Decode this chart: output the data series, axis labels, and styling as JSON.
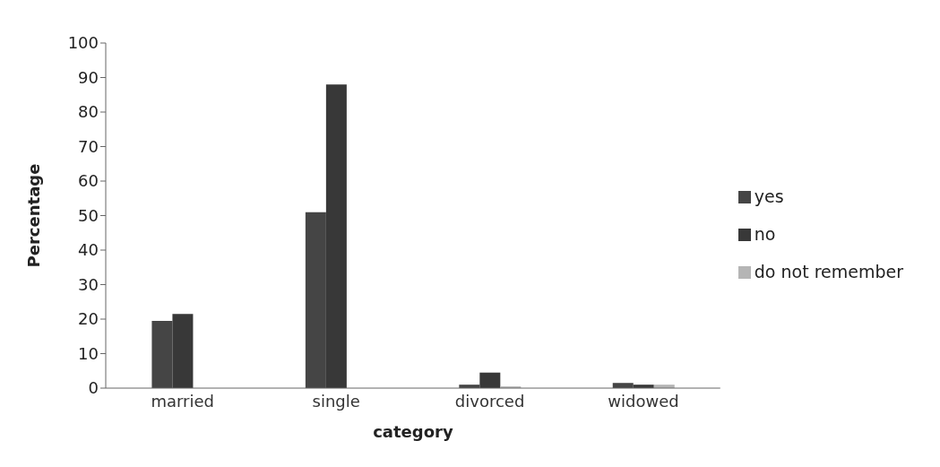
{
  "chart_data": {
    "type": "bar",
    "xlabel": "category",
    "ylabel": "Percentage",
    "categories": [
      "married",
      "single",
      "divorced",
      "widowed"
    ],
    "series": [
      {
        "name": "yes",
        "color": "#454545",
        "values": [
          19.5,
          51,
          1,
          1.5
        ]
      },
      {
        "name": "no",
        "color": "#383838",
        "values": [
          21.5,
          88,
          4.5,
          1
        ]
      },
      {
        "name": "do not remember",
        "color": "#b5b5b5",
        "values": [
          null,
          null,
          0.5,
          1
        ]
      }
    ],
    "ylim": [
      0,
      100
    ],
    "yticks": [
      0,
      10,
      20,
      30,
      40,
      50,
      60,
      70,
      80,
      90,
      100
    ],
    "grid": false,
    "legend": "right"
  }
}
